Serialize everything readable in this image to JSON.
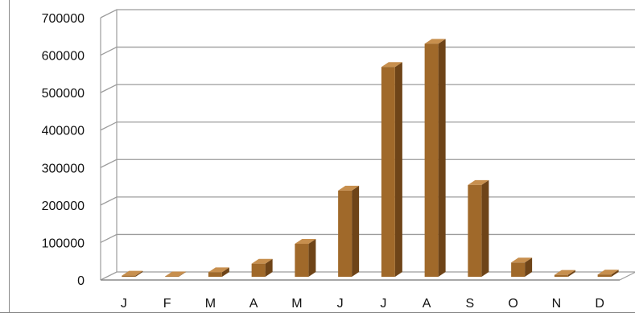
{
  "chart_data": {
    "type": "bar",
    "categories": [
      "J",
      "F",
      "M",
      "A",
      "M",
      "J",
      "J",
      "A",
      "S",
      "O",
      "N",
      "D"
    ],
    "values": [
      3000,
      1000,
      12000,
      35000,
      88000,
      230000,
      560000,
      622000,
      245000,
      38000,
      5000,
      6000
    ],
    "ylim": [
      0,
      700000
    ],
    "yticks": [
      0,
      100000,
      200000,
      300000,
      400000,
      500000,
      600000,
      700000
    ],
    "ytick_labels": [
      "0",
      "100000",
      "200000",
      "300000",
      "400000",
      "500000",
      "600000",
      "700000"
    ],
    "grid": true,
    "legend": "none",
    "style": "3d-column",
    "colors": {
      "bar_front": "#a0692a",
      "bar_side": "#6e4418",
      "bar_top": "#c78f4e",
      "grid": "#9c9c9c"
    }
  }
}
